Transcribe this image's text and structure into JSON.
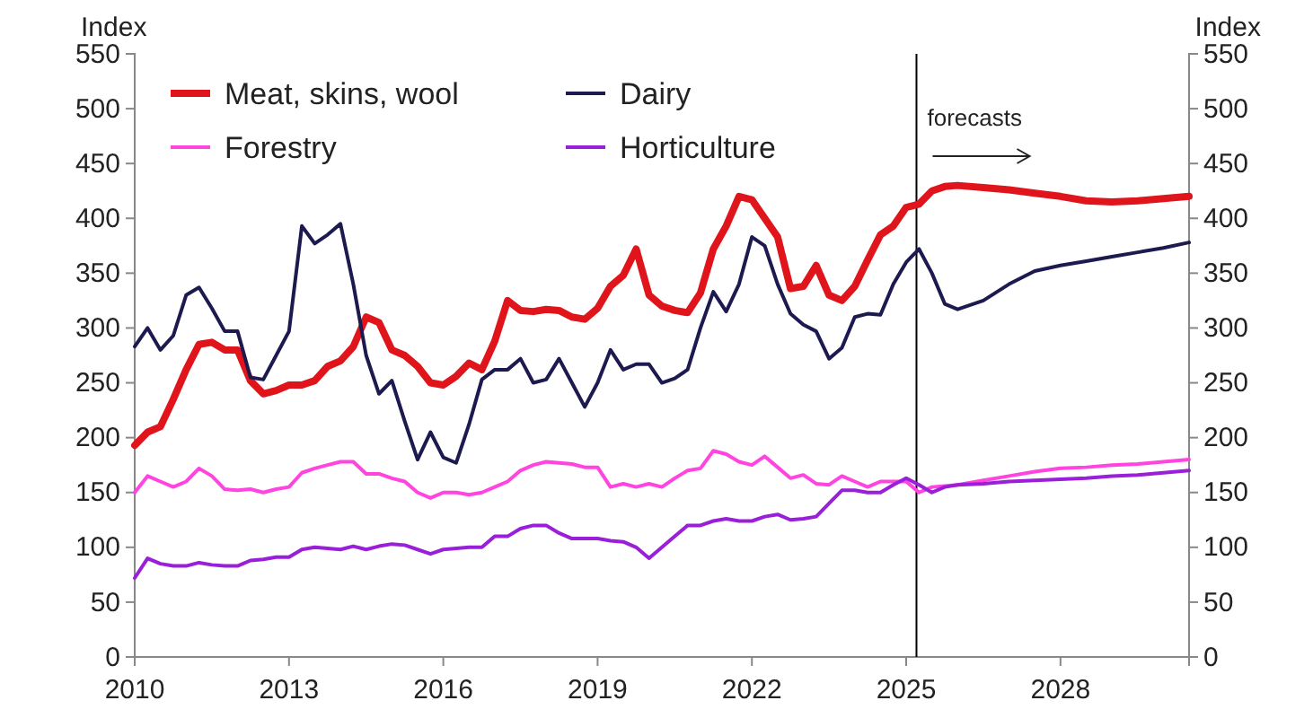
{
  "chart_data": {
    "type": "line",
    "ylabel": "Index",
    "y2label": "Index",
    "xlim": [
      2010,
      2030.5
    ],
    "xticks": [
      2010,
      2013,
      2016,
      2019,
      2022,
      2025,
      2028
    ],
    "ylim": [
      0,
      550
    ],
    "yticks": [
      0,
      50,
      100,
      150,
      200,
      250,
      300,
      350,
      400,
      450,
      500,
      550
    ],
    "y2lim": [
      0,
      550
    ],
    "y2ticks": [
      0,
      50,
      100,
      150,
      200,
      250,
      300,
      350,
      400,
      450,
      500,
      550
    ],
    "grid": false,
    "legend": "top left",
    "marker": "none",
    "line_style": "solid",
    "x": [
      2010,
      2010.25,
      2010.5,
      2010.75,
      2011,
      2011.25,
      2011.5,
      2011.75,
      2012,
      2012.25,
      2012.5,
      2012.75,
      2013,
      2013.25,
      2013.5,
      2013.75,
      2014,
      2014.25,
      2014.5,
      2014.75,
      2015,
      2015.25,
      2015.5,
      2015.75,
      2016,
      2016.25,
      2016.5,
      2016.75,
      2017,
      2017.25,
      2017.5,
      2017.75,
      2018,
      2018.25,
      2018.5,
      2018.75,
      2019,
      2019.25,
      2019.5,
      2019.75,
      2020,
      2020.25,
      2020.5,
      2020.75,
      2021,
      2021.25,
      2021.5,
      2021.75,
      2022,
      2022.25,
      2022.5,
      2022.75,
      2023,
      2023.25,
      2023.5,
      2023.75,
      2024,
      2024.25,
      2024.5,
      2024.75,
      2025,
      2025.25,
      2025.5,
      2025.75,
      2026,
      2026.5,
      2027,
      2027.5,
      2028,
      2028.5,
      2029,
      2029.5,
      2030,
      2030.5
    ],
    "series": [
      {
        "name": "Meat, skins, wool",
        "color": "#e0141b",
        "values": [
          193,
          205,
          210,
          235,
          262,
          285,
          287,
          280,
          280,
          252,
          240,
          243,
          248,
          248,
          252,
          265,
          270,
          283,
          310,
          305,
          280,
          275,
          265,
          250,
          248,
          256,
          268,
          262,
          288,
          325,
          316,
          315,
          317,
          316,
          310,
          308,
          318,
          338,
          348,
          372,
          330,
          320,
          316,
          314,
          332,
          372,
          393,
          420,
          417,
          400,
          383,
          336,
          338,
          357,
          330,
          325,
          338,
          362,
          385,
          393,
          410,
          413,
          425,
          429,
          430,
          428,
          426,
          423,
          420,
          416,
          415,
          416,
          418,
          420
        ]
      },
      {
        "name": "Dairy",
        "color": "#1c1a4f",
        "values": [
          283,
          300,
          280,
          293,
          330,
          337,
          318,
          297,
          297,
          255,
          253,
          275,
          297,
          393,
          377,
          385,
          395,
          340,
          275,
          240,
          252,
          215,
          180,
          205,
          182,
          177,
          212,
          253,
          262,
          262,
          272,
          250,
          253,
          272,
          250,
          228,
          250,
          280,
          262,
          267,
          267,
          250,
          254,
          262,
          300,
          333,
          315,
          340,
          383,
          375,
          340,
          313,
          303,
          297,
          272,
          282,
          310,
          313,
          312,
          340,
          360,
          372,
          350,
          322,
          317,
          325,
          340,
          352,
          357,
          361,
          365,
          369,
          373,
          378
        ]
      },
      {
        "name": "Forestry",
        "color": "#ff44e0",
        "values": [
          150,
          165,
          160,
          155,
          160,
          172,
          165,
          153,
          152,
          153,
          150,
          153,
          155,
          168,
          172,
          175,
          178,
          178,
          167,
          167,
          163,
          160,
          150,
          145,
          150,
          150,
          148,
          150,
          155,
          160,
          170,
          175,
          178,
          177,
          176,
          173,
          173,
          155,
          158,
          155,
          158,
          155,
          163,
          170,
          172,
          188,
          185,
          178,
          175,
          183,
          173,
          163,
          166,
          158,
          157,
          165,
          160,
          155,
          160,
          160,
          160,
          150,
          155,
          156,
          157,
          161,
          165,
          169,
          172,
          173,
          175,
          176,
          178,
          180
        ]
      },
      {
        "name": "Horticulture",
        "color": "#9a1fd8",
        "values": [
          72,
          90,
          85,
          83,
          83,
          86,
          84,
          83,
          83,
          88,
          89,
          91,
          91,
          98,
          100,
          99,
          98,
          101,
          98,
          101,
          103,
          102,
          98,
          94,
          98,
          99,
          100,
          100,
          110,
          110,
          117,
          120,
          120,
          113,
          108,
          108,
          108,
          106,
          105,
          100,
          90,
          100,
          110,
          120,
          120,
          124,
          126,
          124,
          124,
          128,
          130,
          125,
          126,
          128,
          140,
          152,
          152,
          150,
          150,
          157,
          163,
          157,
          150,
          155,
          157,
          158,
          160,
          161,
          162,
          163,
          165,
          166,
          168,
          170
        ]
      }
    ],
    "ref_lines": [
      {
        "axis": "x",
        "value": 2025.2,
        "label": "forecasts",
        "color": "#000000",
        "line_style": "solid"
      }
    ]
  }
}
